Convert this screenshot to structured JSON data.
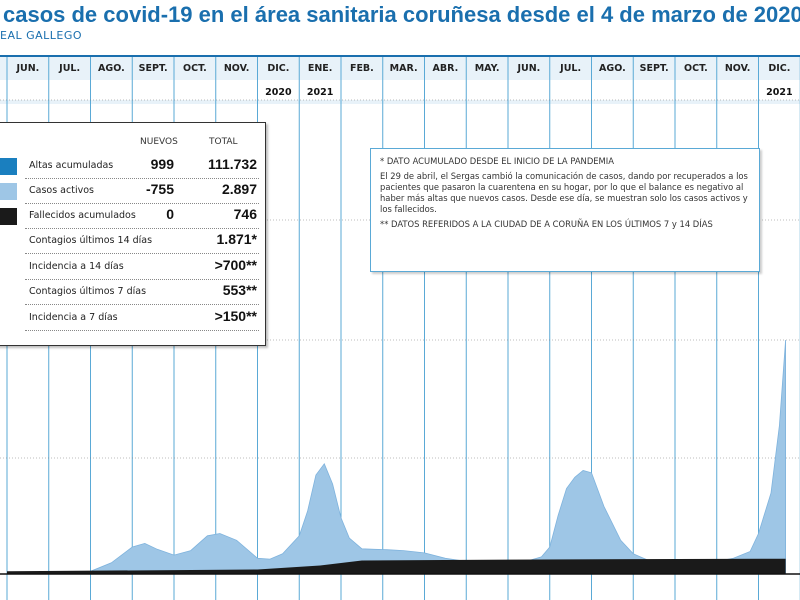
{
  "title": "casos de covid-19 en el área sanitaria coruñesa desde el 4 de marzo de 2020",
  "source": "EAL GALLEGO",
  "colors": {
    "accent": "#1a6fae",
    "altas": "#1a7fbf",
    "activos": "#9ec6e6",
    "fallecidos": "#1a1a1a",
    "grid": "#5aa9d6"
  },
  "legend": {
    "header_nuevos": "NUEVOS",
    "header_total": "TOTAL",
    "rows": [
      {
        "label": "Altas acumuladas",
        "nuevos": "999",
        "total": "111.732",
        "swatch": "altas"
      },
      {
        "label": "Casos activos",
        "nuevos": "-755",
        "total": "2.897",
        "swatch": "activos"
      },
      {
        "label": "Fallecidos acumulados",
        "nuevos": "0",
        "total": "746",
        "swatch": "fallecidos"
      },
      {
        "label": "Contagios últimos 14 días",
        "nuevos": "",
        "total": "1.871*",
        "swatch": ""
      },
      {
        "label": "Incidencia a 14 días",
        "nuevos": "",
        "total": ">700**",
        "swatch": ""
      },
      {
        "label": "Contagios últimos 7 días",
        "nuevos": "",
        "total": "553**",
        "swatch": ""
      },
      {
        "label": "Incidencia a 7 días",
        "nuevos": "",
        "total": ">150**",
        "swatch": ""
      }
    ]
  },
  "notes": {
    "note1": "* DATO ACUMULADO DESDE EL INICIO DE LA PANDEMIA",
    "note2": "El 29 de abril, el Sergas cambió la comunicación de casos, dando por recuperados a los pacientes que pasaron la cuarentena en su hogar, por lo que el balance es negativo al haber más altas que nuevos casos. Desde ese día, se muestran solo los casos activos y los fallecidos.",
    "note3": "** DATOS REFERIDOS A LA CIUDAD DE A CORUÑA EN LOS ÚLTIMOS 7 y 14 DÍAS"
  },
  "chart_data": {
    "type": "area",
    "months": [
      "JUN.",
      "JUL.",
      "AGO.",
      "SEPT.",
      "OCT.",
      "NOV.",
      "DIC.",
      "ENE.",
      "FEB.",
      "MAR.",
      "ABR.",
      "MAY.",
      "JUN.",
      "JUL.",
      "AGO.",
      "SEPT.",
      "OCT.",
      "NOV.",
      "DIC."
    ],
    "year_labels": [
      {
        "after_month_index": 6,
        "label": "2020"
      },
      {
        "after_month_index": 7,
        "label": "2021"
      },
      {
        "after_month_index": 18,
        "label": "2021"
      }
    ],
    "series": [
      {
        "key": "activos",
        "x": [
          0,
          1,
          2,
          2.5,
          3,
          3.3,
          3.6,
          4,
          4.4,
          4.8,
          5.1,
          5.5,
          6,
          6.3,
          6.6,
          7,
          7.2,
          7.4,
          7.6,
          7.8,
          8,
          8.2,
          8.5,
          8.8,
          9.1,
          9.5,
          10,
          10.5,
          11,
          11.5,
          12,
          12.5,
          12.8,
          13,
          13.2,
          13.4,
          13.6,
          13.8,
          14,
          14.3,
          14.7,
          15,
          15.5,
          16,
          16.5,
          17,
          17.4,
          17.8,
          18,
          18.3,
          18.5,
          18.65
        ],
        "y": [
          0.4,
          0.4,
          0.6,
          2.5,
          6,
          6.8,
          5.5,
          4.2,
          5.2,
          8.5,
          9,
          7.5,
          3.5,
          3.3,
          4.5,
          8.5,
          14,
          22,
          24.5,
          20,
          12.5,
          8,
          5.6,
          5.5,
          5.4,
          5.2,
          4.7,
          3.5,
          2.8,
          2.3,
          2.4,
          3,
          3.8,
          6,
          13,
          19,
          21.5,
          23,
          22.5,
          15,
          7.5,
          4.5,
          2.5,
          2.2,
          2.3,
          2.8,
          3.5,
          5,
          9,
          18,
          33,
          52
        ]
      },
      {
        "key": "fallecidos",
        "x": [
          0,
          6,
          7.5,
          8.5,
          12,
          15,
          18.65
        ],
        "y": [
          0.6,
          1.0,
          1.9,
          3.0,
          3.2,
          3.3,
          3.4
        ]
      }
    ]
  }
}
